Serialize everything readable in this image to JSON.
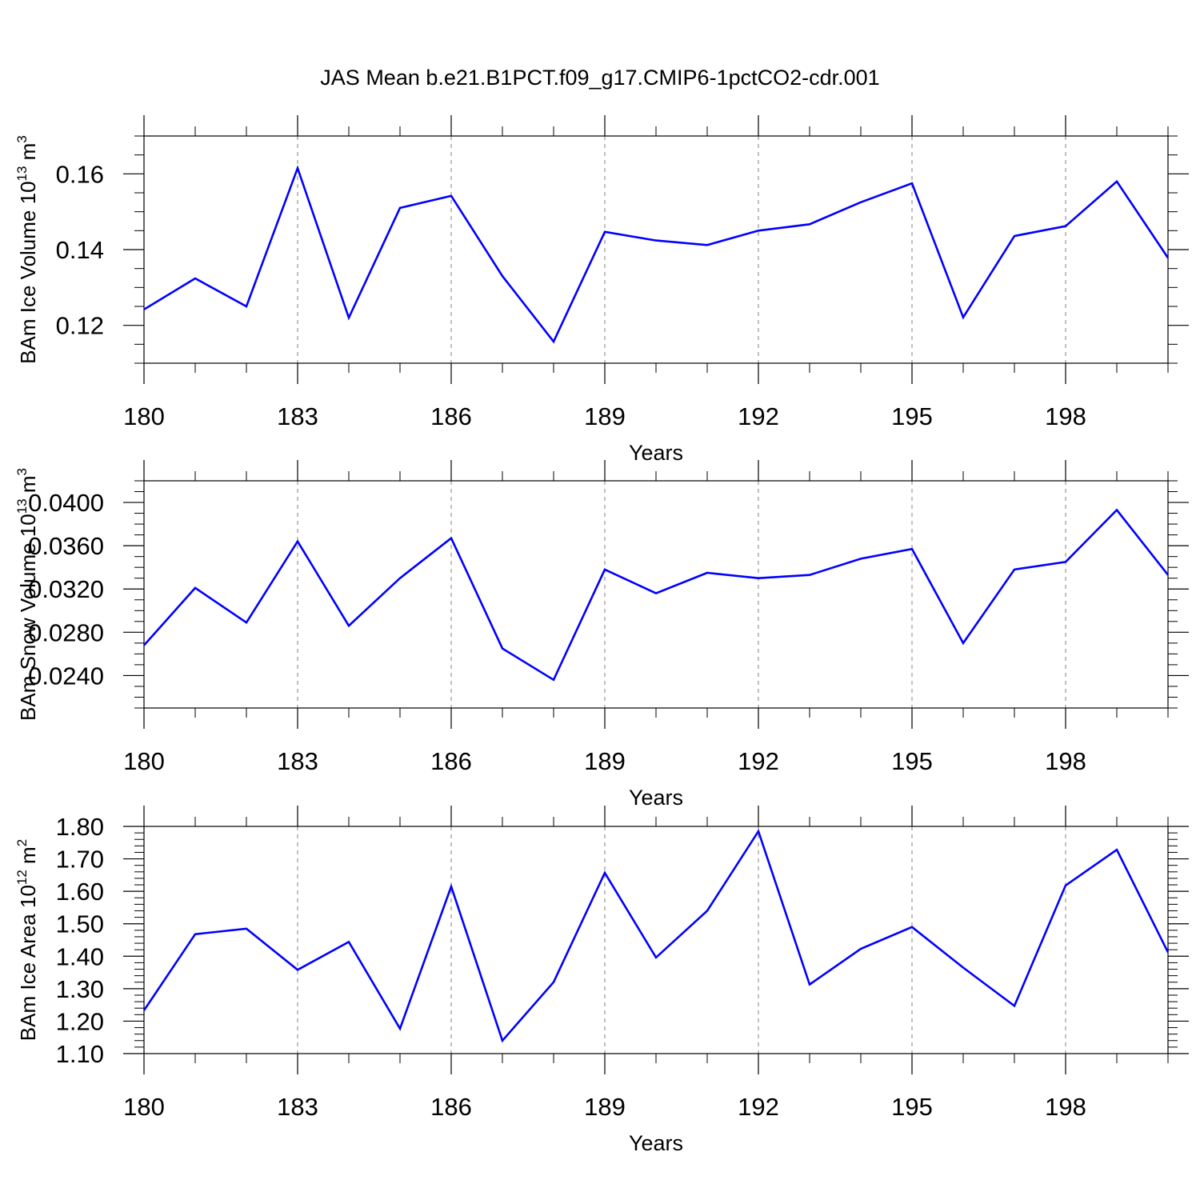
{
  "title": "JAS Mean b.e21.B1PCT.f09_g17.CMIP6-1pctCO2-cdr.001",
  "colors": {
    "line": "#0000ff",
    "axis": "#000000",
    "grid": "#808080"
  },
  "chart_data": [
    {
      "type": "line",
      "xlabel": "Years",
      "ylabel_main": "BAm Ice Volume 10",
      "ylabel_exp": "13",
      "ylabel_unit": " m",
      "ylabel_unit_exp": "3",
      "x": [
        180,
        181,
        182,
        183,
        184,
        185,
        186,
        187,
        188,
        189,
        190,
        191,
        192,
        193,
        194,
        195,
        196,
        197,
        198,
        199,
        200
      ],
      "values": [
        0.1242,
        0.1324,
        0.125,
        0.1615,
        0.122,
        0.151,
        0.1542,
        0.133,
        0.1157,
        0.1447,
        0.1424,
        0.1412,
        0.145,
        0.1467,
        0.1525,
        0.1575,
        0.1221,
        0.1436,
        0.1462,
        0.158,
        0.1378
      ],
      "xlim": [
        180,
        200
      ],
      "ylim": [
        0.11,
        0.17
      ],
      "x_ticks": [
        180,
        183,
        186,
        189,
        192,
        195,
        198
      ],
      "x_tick_labels": [
        "180",
        "183",
        "186",
        "189",
        "192",
        "195",
        "198"
      ],
      "x_minor_step": 1,
      "y_ticks": [
        0.12,
        0.14,
        0.16
      ],
      "y_tick_labels": [
        "0.12",
        "0.14",
        "0.16"
      ],
      "y_minor_step": 0.005,
      "grid": "vertical dashed at major x ticks"
    },
    {
      "type": "line",
      "xlabel": "Years",
      "ylabel_main": "BAm Snow Volume 10",
      "ylabel_exp": "13",
      "ylabel_unit": " m",
      "ylabel_unit_exp": "3",
      "x": [
        180,
        181,
        182,
        183,
        184,
        185,
        186,
        187,
        188,
        189,
        190,
        191,
        192,
        193,
        194,
        195,
        196,
        197,
        198,
        199,
        200
      ],
      "values": [
        0.0268,
        0.0321,
        0.0289,
        0.0364,
        0.0286,
        0.033,
        0.0367,
        0.0265,
        0.0236,
        0.0338,
        0.0316,
        0.0335,
        0.033,
        0.0333,
        0.0348,
        0.0357,
        0.027,
        0.0338,
        0.0345,
        0.0393,
        0.0333
      ],
      "xlim": [
        180,
        200
      ],
      "ylim": [
        0.021,
        0.042
      ],
      "x_ticks": [
        180,
        183,
        186,
        189,
        192,
        195,
        198
      ],
      "x_tick_labels": [
        "180",
        "183",
        "186",
        "189",
        "192",
        "195",
        "198"
      ],
      "x_minor_step": 1,
      "y_ticks": [
        0.024,
        0.028,
        0.032,
        0.036,
        0.04
      ],
      "y_tick_labels": [
        "0.0240",
        "0.0280",
        "0.0320",
        "0.0360",
        "0.0400"
      ],
      "y_minor_step": 0.001,
      "grid": "vertical dashed at major x ticks"
    },
    {
      "type": "line",
      "xlabel": "Years",
      "ylabel_main": "BAm Ice Area 10",
      "ylabel_exp": "12",
      "ylabel_unit": " m",
      "ylabel_unit_exp": "2",
      "x": [
        180,
        181,
        182,
        183,
        184,
        185,
        186,
        187,
        188,
        189,
        190,
        191,
        192,
        193,
        194,
        195,
        196,
        197,
        198,
        199,
        200
      ],
      "values": [
        1.233,
        1.468,
        1.485,
        1.358,
        1.444,
        1.177,
        1.615,
        1.14,
        1.32,
        1.657,
        1.396,
        1.54,
        1.785,
        1.313,
        1.423,
        1.49,
        1.365,
        1.247,
        1.618,
        1.728,
        1.412
      ],
      "xlim": [
        180,
        200
      ],
      "ylim": [
        1.1,
        1.8
      ],
      "x_ticks": [
        180,
        183,
        186,
        189,
        192,
        195,
        198
      ],
      "x_tick_labels": [
        "180",
        "183",
        "186",
        "189",
        "192",
        "195",
        "198"
      ],
      "x_minor_step": 1,
      "y_ticks": [
        1.1,
        1.2,
        1.3,
        1.4,
        1.5,
        1.6,
        1.7,
        1.8
      ],
      "y_tick_labels": [
        "1.10",
        "1.20",
        "1.30",
        "1.40",
        "1.50",
        "1.60",
        "1.70",
        "1.80"
      ],
      "y_minor_step": 0.02,
      "grid": "vertical dashed at major x ticks"
    }
  ]
}
